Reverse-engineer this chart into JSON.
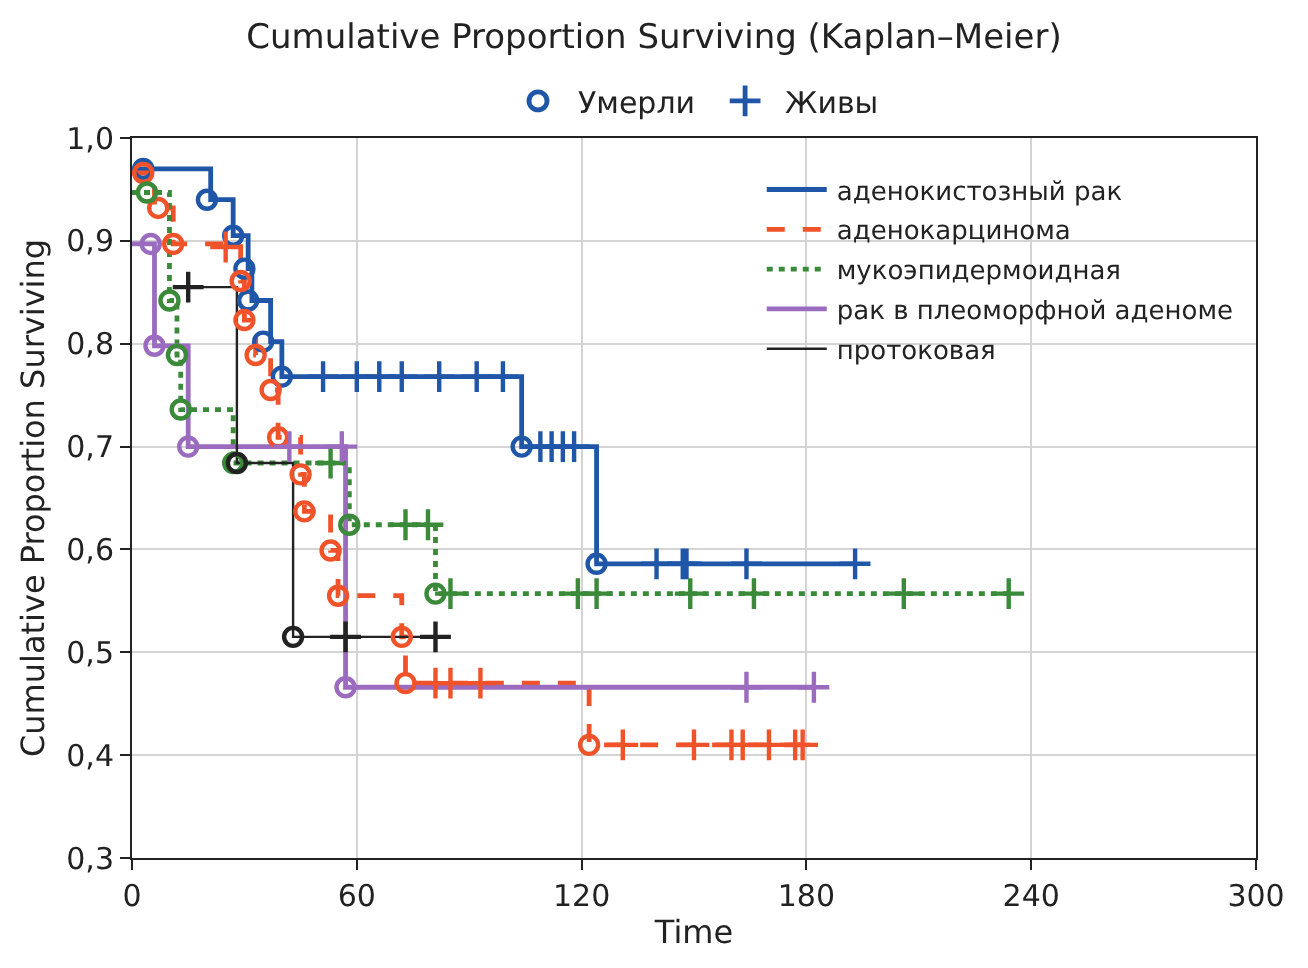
{
  "chart_data": {
    "type": "step",
    "title": "Cumulative Proportion Surviving (Kaplan–Meier)",
    "xlabel": "Time",
    "ylabel": "Cumulative Proportion Surviving",
    "xlim": [
      0,
      300
    ],
    "xticks": [
      0,
      60,
      120,
      180,
      240,
      300
    ],
    "ylim": [
      0.3,
      1.0
    ],
    "yticks": [
      {
        "value": 0.3,
        "label": "0,3"
      },
      {
        "value": 0.4,
        "label": "0,4"
      },
      {
        "value": 0.5,
        "label": "0,5"
      },
      {
        "value": 0.6,
        "label": "0,6"
      },
      {
        "value": 0.7,
        "label": "0,7"
      },
      {
        "value": 0.8,
        "label": "0,8"
      },
      {
        "value": 0.9,
        "label": "0,9"
      },
      {
        "value": 1.0,
        "label": "1,0"
      }
    ],
    "grid": true,
    "legend": "top right",
    "marker": "none",
    "series": [
      {
        "name": "аденокистозный рак",
        "color": "#1f56a8",
        "line_style": "solid",
        "x": [
          0,
          21,
          27,
          31,
          32,
          37,
          40,
          104,
          124,
          193
        ],
        "values": [
          0.97,
          0.94,
          0.905,
          0.873,
          0.842,
          0.802,
          0.768,
          0.7,
          0.586,
          0.586
        ]
      },
      {
        "name": "аденокарцинома",
        "color": "#f0532a",
        "line_style": "dashed",
        "x": [
          0,
          6,
          11,
          29,
          30,
          33,
          37,
          39,
          45,
          46,
          53,
          55,
          72,
          73,
          122,
          179
        ],
        "values": [
          0.966,
          0.932,
          0.897,
          0.861,
          0.823,
          0.789,
          0.755,
          0.709,
          0.673,
          0.637,
          0.599,
          0.555,
          0.515,
          0.47,
          0.41,
          0.41
        ]
      },
      {
        "name": "мукоэпидермоидная",
        "color": "#3a8a3a",
        "line_style": "dotted",
        "x": [
          0,
          10,
          12,
          13,
          27,
          58,
          81,
          234
        ],
        "values": [
          0.947,
          0.842,
          0.789,
          0.736,
          0.684,
          0.624,
          0.557,
          0.557
        ]
      },
      {
        "name": "рак в плеоморфной аденоме",
        "color": "#9b6bbf",
        "line_style": "solid",
        "x": [
          0,
          6,
          15,
          57,
          182
        ],
        "values": [
          0.897,
          0.798,
          0.7,
          0.466,
          0.466
        ]
      },
      {
        "name": "протоковая",
        "color": "#222222",
        "line_style": "solid",
        "x": [
          14,
          28,
          43,
          81
        ],
        "values": [
          0.855,
          0.684,
          0.515,
          0.515
        ]
      },
      {
        "name": "Умерли",
        "type": "scatter",
        "marker": "circle",
        "color": "#1f56a8",
        "x": [
          3,
          20,
          27,
          30,
          31,
          35,
          40,
          104,
          124,
          3,
          7,
          11,
          29,
          30,
          33,
          37,
          39,
          45,
          46,
          53,
          55,
          72,
          73,
          122,
          4,
          10,
          12,
          13,
          27,
          58,
          81,
          5,
          6,
          15,
          57,
          28,
          43
        ],
        "values": [
          0.97,
          0.94,
          0.905,
          0.873,
          0.842,
          0.802,
          0.768,
          0.7,
          0.586,
          0.966,
          0.932,
          0.897,
          0.861,
          0.823,
          0.789,
          0.755,
          0.709,
          0.673,
          0.637,
          0.599,
          0.555,
          0.515,
          0.47,
          0.41,
          0.947,
          0.842,
          0.789,
          0.736,
          0.684,
          0.624,
          0.557,
          0.897,
          0.798,
          0.7,
          0.466,
          0.684,
          0.515
        ],
        "colors": [
          "#1f56a8",
          "#1f56a8",
          "#1f56a8",
          "#1f56a8",
          "#1f56a8",
          "#1f56a8",
          "#1f56a8",
          "#1f56a8",
          "#1f56a8",
          "#f0532a",
          "#f0532a",
          "#f0532a",
          "#f0532a",
          "#f0532a",
          "#f0532a",
          "#f0532a",
          "#f0532a",
          "#f0532a",
          "#f0532a",
          "#f0532a",
          "#f0532a",
          "#f0532a",
          "#f0532a",
          "#f0532a",
          "#3a8a3a",
          "#3a8a3a",
          "#3a8a3a",
          "#3a8a3a",
          "#3a8a3a",
          "#3a8a3a",
          "#3a8a3a",
          "#9b6bbf",
          "#9b6bbf",
          "#9b6bbf",
          "#9b6bbf",
          "#222222",
          "#222222"
        ]
      },
      {
        "name": "Живы",
        "type": "scatter",
        "marker": "cross",
        "color": "#1f56a8",
        "x": [
          51,
          60,
          66,
          72,
          82,
          92,
          99,
          109,
          112,
          115,
          118,
          140,
          147,
          148,
          164,
          193,
          25,
          81,
          85,
          93,
          131,
          150,
          160,
          163,
          170,
          177,
          179,
          53,
          73,
          79,
          85,
          119,
          124,
          149,
          166,
          206,
          234,
          42,
          56,
          164,
          182,
          15,
          57,
          81
        ],
        "values": [
          0.768,
          0.768,
          0.768,
          0.768,
          0.768,
          0.768,
          0.768,
          0.7,
          0.7,
          0.7,
          0.7,
          0.586,
          0.586,
          0.586,
          0.586,
          0.586,
          0.894,
          0.47,
          0.47,
          0.47,
          0.41,
          0.41,
          0.41,
          0.41,
          0.41,
          0.41,
          0.41,
          0.684,
          0.624,
          0.624,
          0.557,
          0.557,
          0.557,
          0.557,
          0.557,
          0.557,
          0.557,
          0.7,
          0.7,
          0.466,
          0.466,
          0.855,
          0.515,
          0.515
        ],
        "colors": [
          "#1f56a8",
          "#1f56a8",
          "#1f56a8",
          "#1f56a8",
          "#1f56a8",
          "#1f56a8",
          "#1f56a8",
          "#1f56a8",
          "#1f56a8",
          "#1f56a8",
          "#1f56a8",
          "#1f56a8",
          "#1f56a8",
          "#1f56a8",
          "#1f56a8",
          "#1f56a8",
          "#f0532a",
          "#f0532a",
          "#f0532a",
          "#f0532a",
          "#f0532a",
          "#f0532a",
          "#f0532a",
          "#f0532a",
          "#f0532a",
          "#f0532a",
          "#f0532a",
          "#3a8a3a",
          "#3a8a3a",
          "#3a8a3a",
          "#3a8a3a",
          "#3a8a3a",
          "#3a8a3a",
          "#3a8a3a",
          "#3a8a3a",
          "#3a8a3a",
          "#3a8a3a",
          "#9b6bbf",
          "#9b6bbf",
          "#9b6bbf",
          "#9b6bbf",
          "#222222",
          "#222222",
          "#222222"
        ]
      }
    ]
  }
}
